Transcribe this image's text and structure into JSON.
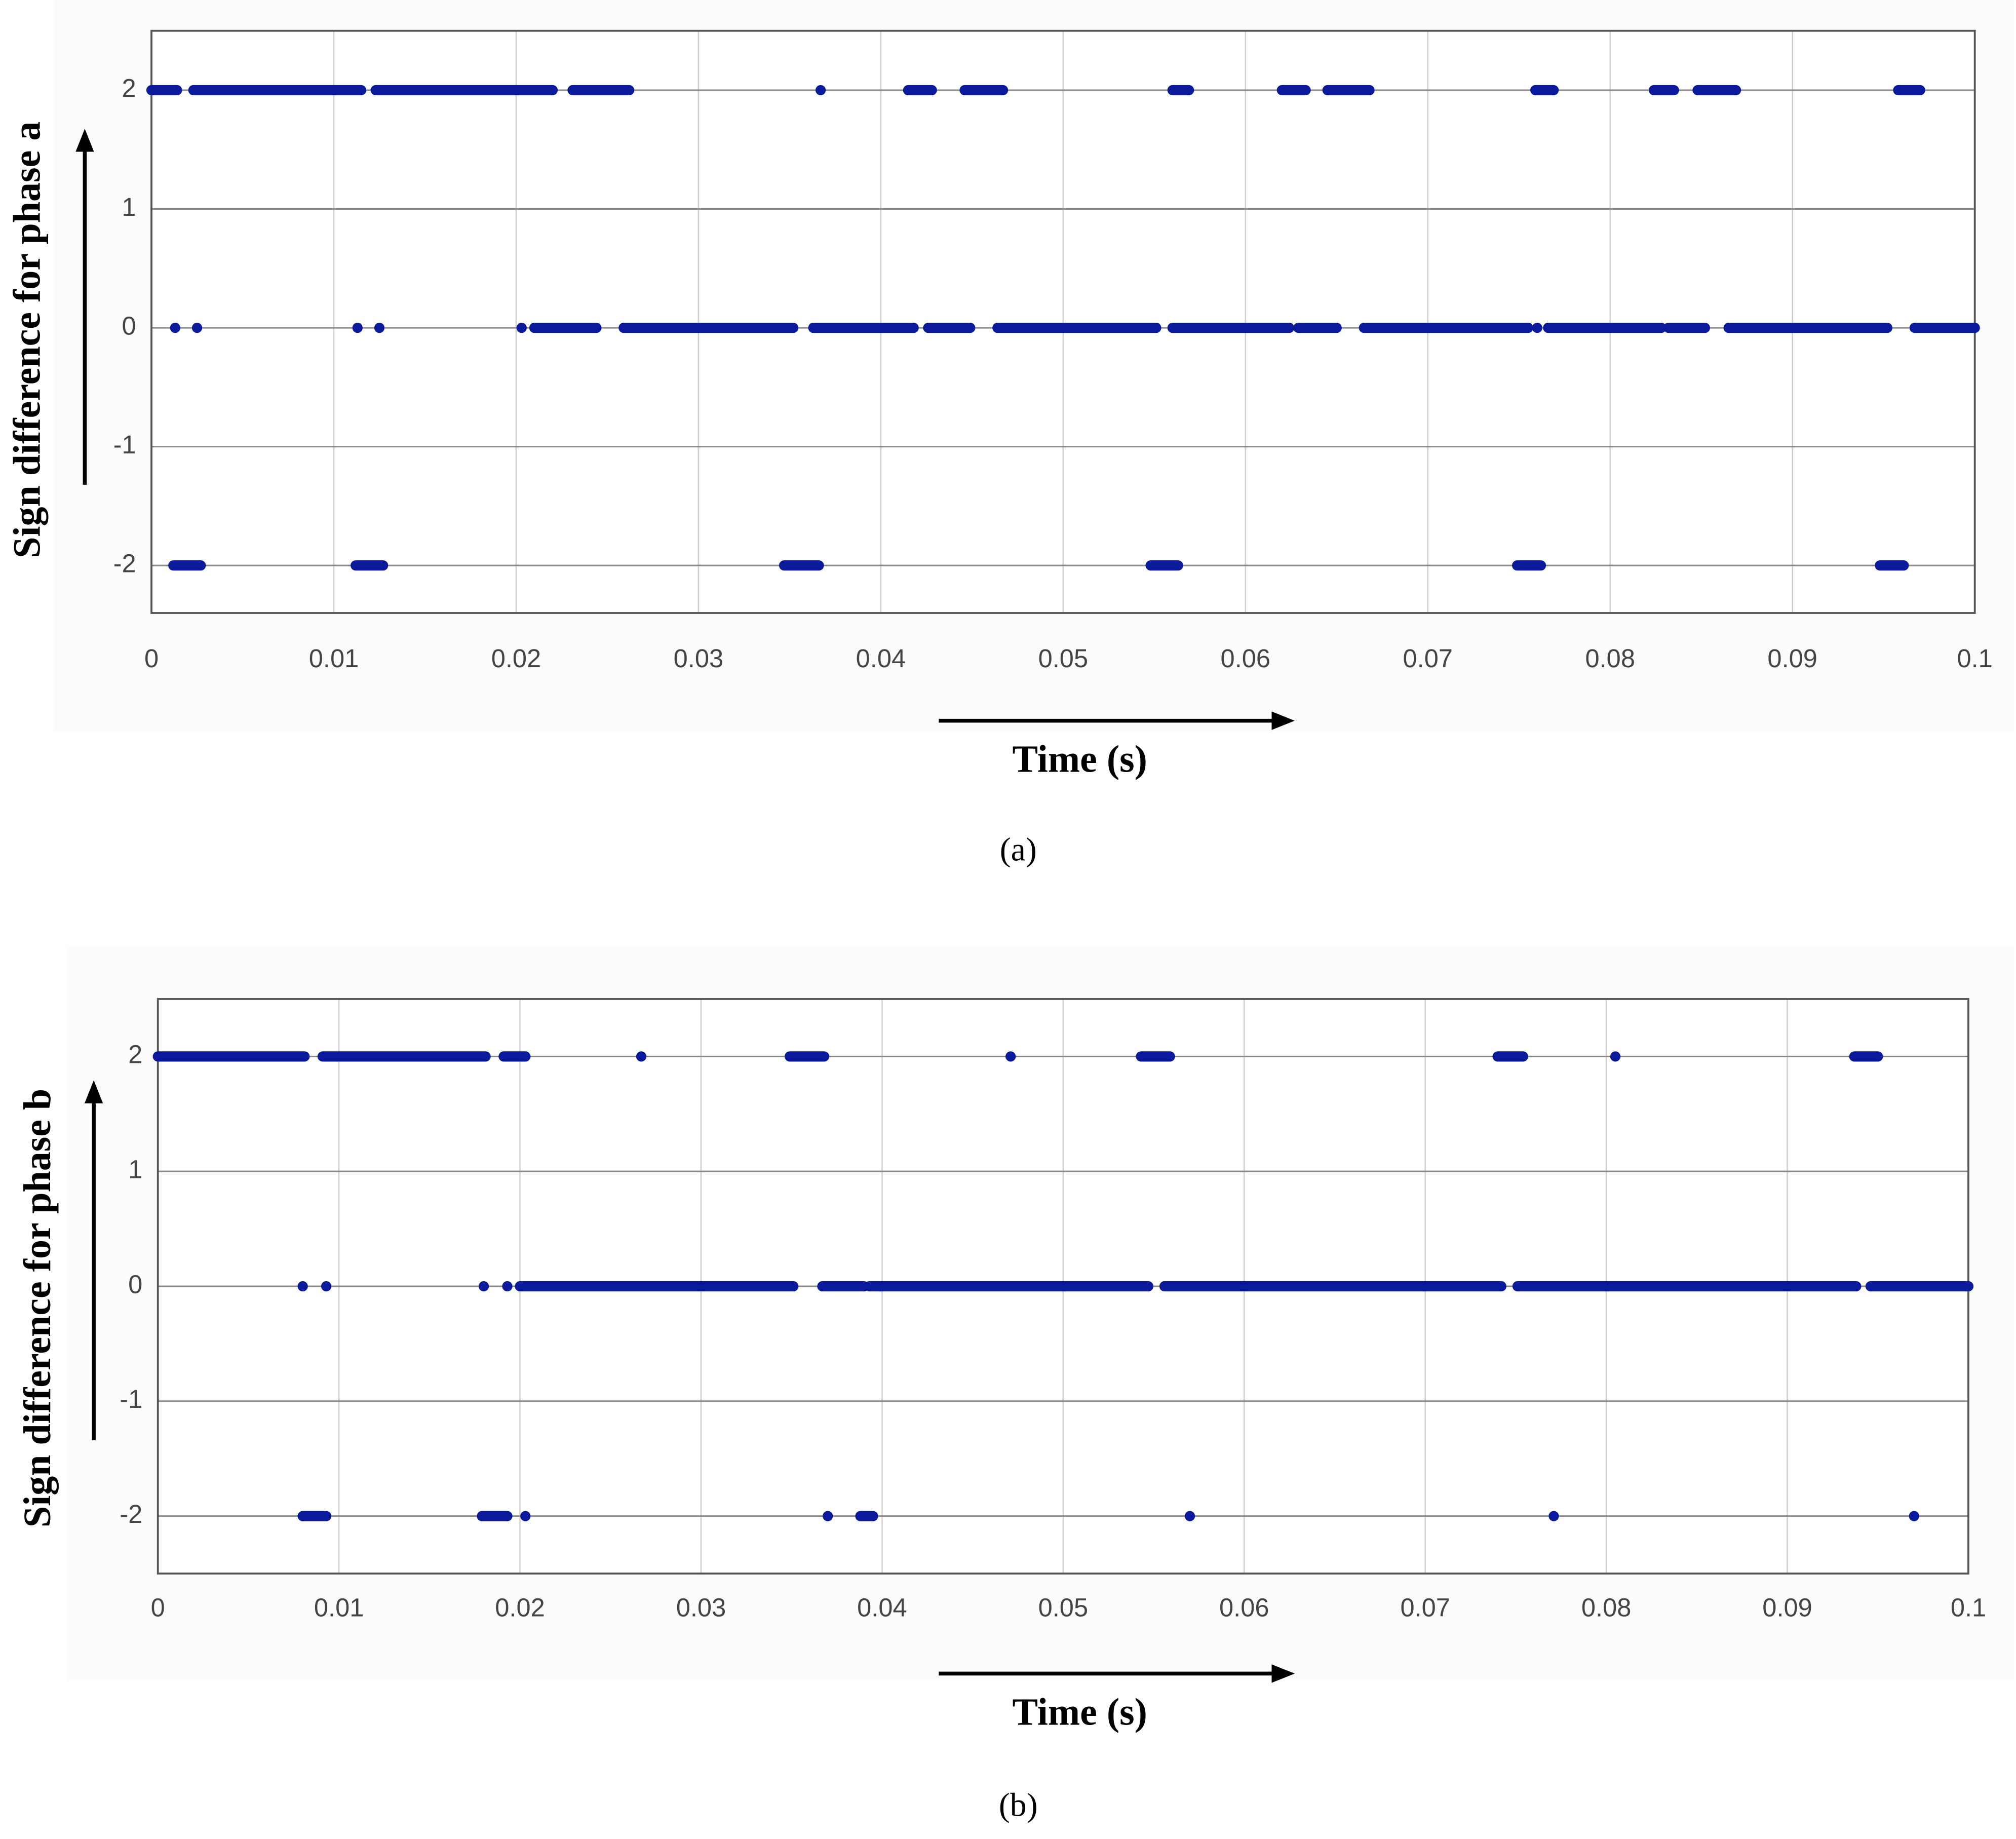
{
  "chart_data": [
    {
      "type": "scatter",
      "caption": "(a)",
      "xlabel": "Time (s)",
      "ylabel": "Sign difference for phase a",
      "xlim": [
        0,
        0.1
      ],
      "ylim": [
        -2.4,
        2.5
      ],
      "xticks": [
        0,
        0.01,
        0.02,
        0.03,
        0.04,
        0.05,
        0.06,
        0.07,
        0.08,
        0.09,
        0.1
      ],
      "yticks": [
        -2,
        -1,
        0,
        1,
        2
      ],
      "grid": true,
      "color": "#0a1a9a",
      "x": [
        [
          0,
          0.0014
        ],
        [
          0.0023,
          0.0115
        ],
        [
          0.0123,
          0.022
        ],
        [
          0.0231,
          0.0262
        ],
        [
          0.0367,
          0.0367
        ],
        [
          0.0415,
          0.0428
        ],
        [
          0.0446,
          0.0467
        ],
        [
          0.056,
          0.0569
        ],
        [
          0.062,
          0.0633
        ],
        [
          0.0645,
          0.0668
        ],
        [
          0.0759,
          0.0769
        ],
        [
          0.0824,
          0.0835
        ],
        [
          0.0848,
          0.0869
        ],
        [
          0.0958,
          0.097
        ],
        [
          0.0013,
          0.0013
        ],
        [
          0.0025,
          0.0025
        ],
        [
          0.0113,
          0.0113
        ],
        [
          0.0125,
          0.0125
        ],
        [
          0.0203,
          0.0203
        ],
        [
          0.021,
          0.0244
        ],
        [
          0.0259,
          0.0352
        ],
        [
          0.0363,
          0.0418
        ],
        [
          0.0426,
          0.0449
        ],
        [
          0.0464,
          0.0551
        ],
        [
          0.056,
          0.0624
        ],
        [
          0.0629,
          0.065
        ],
        [
          0.0665,
          0.0755
        ],
        [
          0.076,
          0.076
        ],
        [
          0.0766,
          0.0828
        ],
        [
          0.0832,
          0.0852
        ],
        [
          0.0865,
          0.0952
        ],
        [
          0.0967,
          0.1
        ],
        [
          0.0012,
          0.0027
        ],
        [
          0.0112,
          0.0127
        ],
        [
          0.0347,
          0.0366
        ],
        [
          0.0548,
          0.0563
        ],
        [
          0.0749,
          0.0762
        ],
        [
          0.0948,
          0.0961
        ]
      ],
      "values": [
        2,
        2,
        2,
        2,
        2,
        2,
        2,
        2,
        2,
        2,
        2,
        2,
        2,
        2,
        0,
        0,
        0,
        0,
        0,
        0,
        0,
        0,
        0,
        0,
        0,
        0,
        0,
        0,
        0,
        0,
        0,
        0,
        -2,
        -2,
        -2,
        -2,
        -2,
        -2
      ]
    },
    {
      "type": "scatter",
      "caption": "(b)",
      "xlabel": "Time (s)",
      "ylabel": "Sign difference for phase b",
      "xlim": [
        0,
        0.1
      ],
      "ylim": [
        -2.5,
        2.5
      ],
      "xticks": [
        0,
        0.01,
        0.02,
        0.03,
        0.04,
        0.05,
        0.06,
        0.07,
        0.08,
        0.09,
        0.1
      ],
      "yticks": [
        -2,
        -1,
        0,
        1,
        2
      ],
      "grid": true,
      "color": "#0a1a9a",
      "x": [
        [
          0,
          0.0081
        ],
        [
          0.0091,
          0.0181
        ],
        [
          0.0191,
          0.0203
        ],
        [
          0.0267,
          0.0267
        ],
        [
          0.0349,
          0.0368
        ],
        [
          0.0471,
          0.0471
        ],
        [
          0.0543,
          0.0559
        ],
        [
          0.074,
          0.0754
        ],
        [
          0.0805,
          0.0805
        ],
        [
          0.0937,
          0.095
        ],
        [
          0.008,
          0.008
        ],
        [
          0.0093,
          0.0093
        ],
        [
          0.018,
          0.018
        ],
        [
          0.0193,
          0.0193
        ],
        [
          0.02,
          0.0351
        ],
        [
          0.0367,
          0.039
        ],
        [
          0.0393,
          0.0547
        ],
        [
          0.0556,
          0.0742
        ],
        [
          0.0751,
          0.0938
        ],
        [
          0.0946,
          0.1
        ],
        [
          0.008,
          0.0093
        ],
        [
          0.0179,
          0.0193
        ],
        [
          0.0203,
          0.0203
        ],
        [
          0.037,
          0.037
        ],
        [
          0.0388,
          0.0395
        ],
        [
          0.057,
          0.057
        ],
        [
          0.0771,
          0.0771
        ],
        [
          0.097,
          0.097
        ]
      ],
      "values": [
        2,
        2,
        2,
        2,
        2,
        2,
        2,
        2,
        2,
        2,
        0,
        0,
        0,
        0,
        0,
        0,
        0,
        0,
        0,
        0,
        -2,
        -2,
        -2,
        -2,
        -2,
        -2,
        -2,
        -2
      ]
    }
  ]
}
